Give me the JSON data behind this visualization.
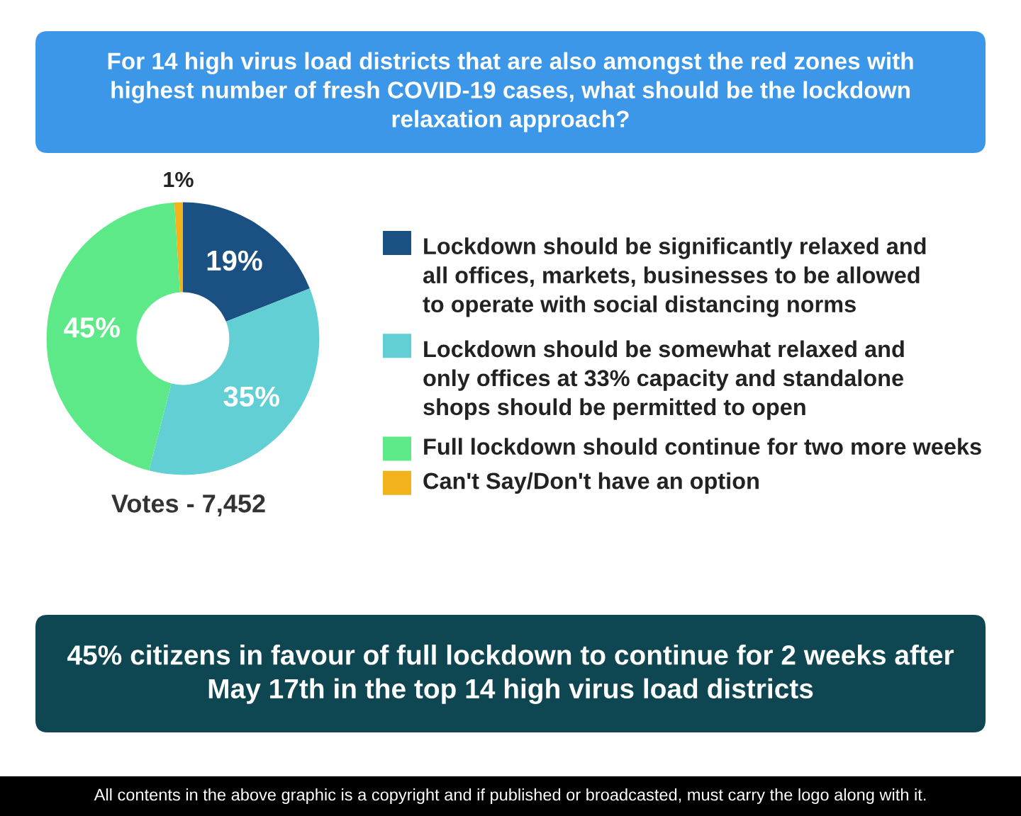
{
  "chart_data": {
    "type": "donut",
    "title": "For 14 high virus load districts that are also amongst the red zones with\nhighest number of fresh COVID-19 cases, what should be the lockdown\nrelaxation approach?",
    "categories": [
      "Lockdown should be significantly relaxed and\nall offices, markets, businesses to be allowed\nto operate with social distancing norms",
      "Lockdown should be somewhat relaxed and\nonly offices at 33% capacity and standalone\nshops should be permitted to open",
      "Full lockdown should continue for two more weeks",
      "Can't Say/Don't have an option"
    ],
    "values": [
      19,
      35,
      45,
      1
    ],
    "colors": [
      "#1b5082",
      "#62cfd5",
      "#5de987",
      "#f2b21c"
    ],
    "value_labels": [
      "19%",
      "35%",
      "45%",
      "1%"
    ],
    "legend": "right",
    "annotations": [
      "Votes - 7,452",
      "45% citizens in favour of full lockdown to continue for 2 weeks after\nMay 17th in the top 14 high virus load districts",
      "All contents in the above graphic is a copyright and if published or broadcasted, must carry the logo along with it."
    ]
  }
}
